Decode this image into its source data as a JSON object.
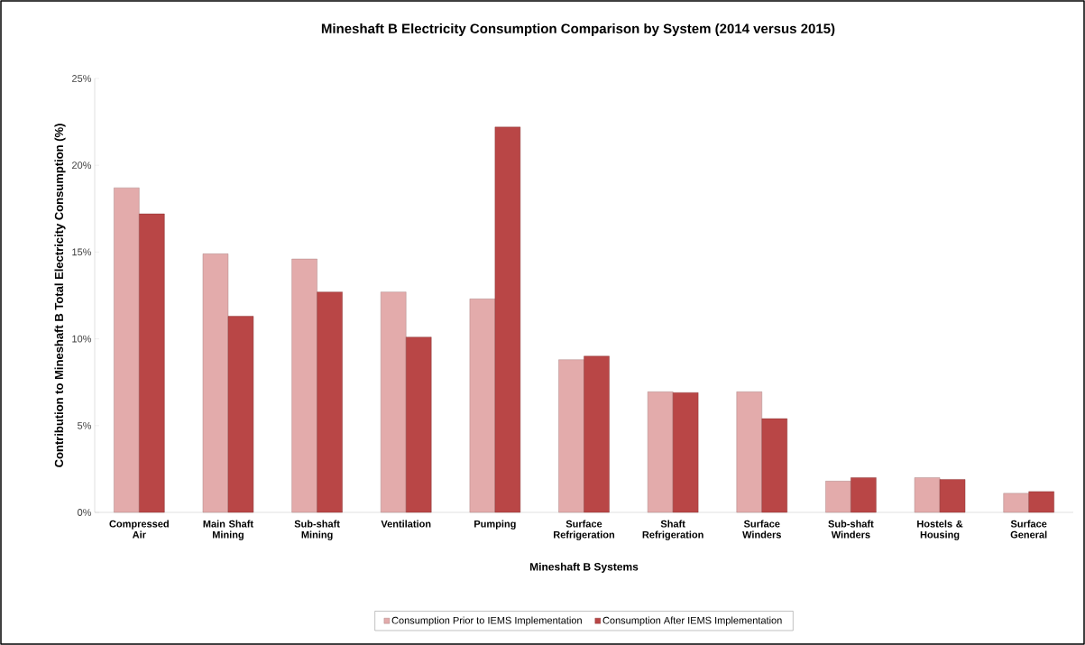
{
  "chart_data": {
    "type": "bar",
    "title": "Mineshaft B Electricity Consumption Comparison by System (2014 versus 2015)",
    "xlabel": "Mineshaft B Systems",
    "ylabel": "Contribution to Mineshaft B Total Electricity Consumption (%)",
    "categories": [
      "Compressed Air",
      "Main Shaft Mining",
      "Sub-shaft Mining",
      "Ventilation",
      "Pumping",
      "Surface Refrigeration",
      "Shaft Refrigeration",
      "Surface Winders",
      "Sub-shaft Winders",
      "Hostels & Housing",
      "Surface General"
    ],
    "series": [
      {
        "name": "Consumption Prior to IEMS Implementation",
        "color": "#e3abab",
        "values": [
          18.7,
          14.9,
          14.6,
          12.7,
          12.3,
          8.8,
          6.95,
          6.95,
          1.8,
          2.0,
          1.1
        ]
      },
      {
        "name": "Consumption After IEMS Implementation",
        "color": "#b94646",
        "values": [
          17.2,
          11.3,
          12.7,
          10.1,
          22.2,
          9.0,
          6.9,
          5.4,
          2.0,
          1.9,
          1.2
        ]
      }
    ],
    "ylim": [
      0,
      25
    ],
    "yticks": [
      {
        "value": 0,
        "label": "0%"
      },
      {
        "value": 5,
        "label": "5%"
      },
      {
        "value": 10,
        "label": "10%"
      },
      {
        "value": 15,
        "label": "15%"
      },
      {
        "value": 20,
        "label": "20%"
      },
      {
        "value": 25,
        "label": "25%"
      }
    ],
    "legend": "bottom"
  }
}
